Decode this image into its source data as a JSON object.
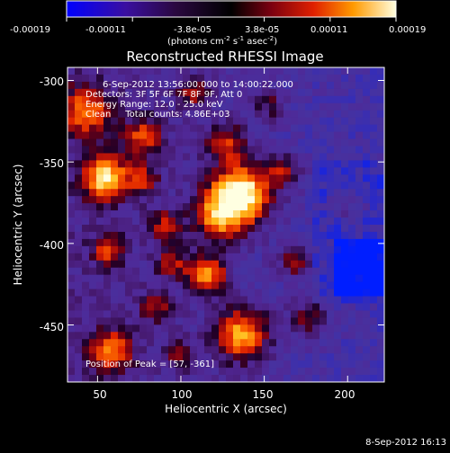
{
  "colorbar": {
    "ticks": [
      "-0.00019",
      "-0.00011",
      "-3.8e-05",
      "3.8e-05",
      "0.00011",
      "0.00019"
    ],
    "unit_main": "(photons cm",
    "unit_sup1": "-2",
    "unit_mid": " s",
    "unit_sup2": "-1",
    "unit_end": " asec",
    "unit_sup3": "-2",
    "unit_close": ")"
  },
  "plot": {
    "title": "Reconstructed RHESSI Image",
    "x_label": "Heliocentric X (arcsec)",
    "y_label": "Heliocentric Y (arcsec)",
    "x_ticks": [
      "50",
      "100",
      "150",
      "200"
    ],
    "y_ticks": [
      "-300",
      "-350",
      "-400",
      "-450"
    ],
    "x_tick_values": [
      50,
      100,
      150,
      200
    ],
    "y_tick_values": [
      -300,
      -350,
      -400,
      -450
    ],
    "x_range": [
      32,
      222
    ],
    "y_range": [
      -292,
      -485
    ],
    "annotations": [
      "6-Sep-2012 13:56:00.000 to 14:00:22.000",
      "Detectors: 3F 5F 6F 7F 8F 9F, Att 0",
      "Energy Range: 12.0 - 25.0 keV",
      "Clean     Total counts: 4.86E+03"
    ],
    "peak_text": "Position of Peak = [57, -361]"
  },
  "footer": {
    "timestamp": "8-Sep-2012 16:13"
  },
  "colors": {
    "background": "#000000",
    "foreground": "#ffffff"
  }
}
